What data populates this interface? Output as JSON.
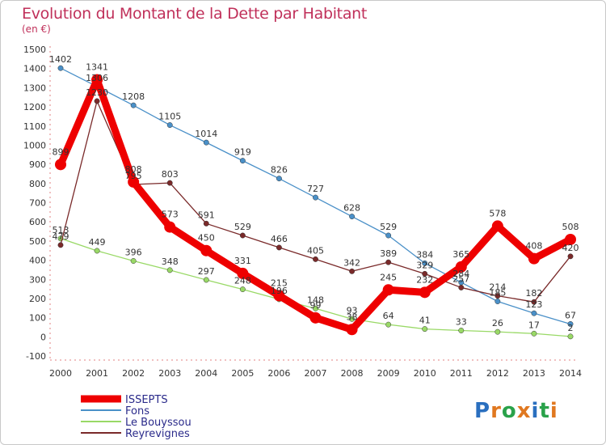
{
  "chart_data": {
    "type": "line",
    "title": "Evolution du Montant de la Dette par Habitant",
    "subtitle": "(en €)",
    "x": [
      "2000",
      "2001",
      "2002",
      "2003",
      "2004",
      "2005",
      "2006",
      "2007",
      "2008",
      "2009",
      "2010",
      "2011",
      "2012",
      "2013",
      "2014"
    ],
    "ylim": [
      -100,
      1500
    ],
    "yticks": [
      -100,
      0,
      100,
      200,
      300,
      400,
      500,
      600,
      700,
      800,
      900,
      1000,
      1100,
      1200,
      1300,
      1400,
      1500
    ],
    "grid": false,
    "legend_position": "bottom-left",
    "series": [
      {
        "name": "ISSEPTS",
        "color": "#ee0000",
        "values": [
          899,
          1341,
          808,
          573,
          450,
          331,
          215,
          99,
          38,
          245,
          232,
          365,
          578,
          408,
          508
        ]
      },
      {
        "name": "Fons",
        "color": "#4a90c8",
        "values": [
          1402,
          1306,
          1208,
          1105,
          1014,
          919,
          826,
          727,
          628,
          529,
          384,
          284,
          185,
          123,
          67
        ]
      },
      {
        "name": "Le Bouyssou",
        "color": "#99d966",
        "values": [
          513,
          449,
          396,
          348,
          297,
          248,
          196,
          148,
          93,
          64,
          41,
          33,
          26,
          17,
          2
        ]
      },
      {
        "name": "Reyrevignes",
        "color": "#7a2a2a",
        "values": [
          479,
          1230,
          795,
          803,
          591,
          529,
          466,
          405,
          342,
          389,
          329,
          257,
          214,
          182,
          420
        ]
      }
    ]
  },
  "logo_text": "Proxiti"
}
